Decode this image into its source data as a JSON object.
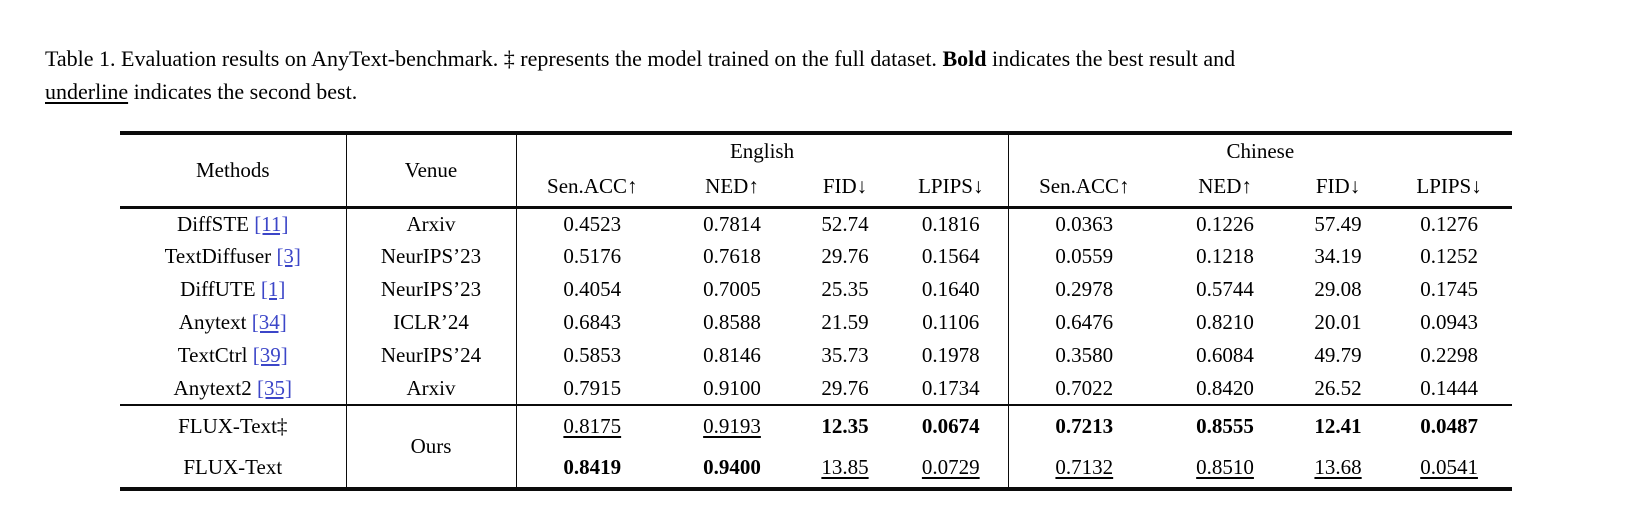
{
  "caption": {
    "segments": [
      {
        "style": "normal",
        "text": "Table 1. Evaluation results on AnyText-benchmark. ‡ represents the model trained on the full dataset. "
      },
      {
        "style": "bold",
        "text": "Bold"
      },
      {
        "style": "normal",
        "text": " indicates the best result and"
      },
      {
        "style": "break",
        "text": ""
      },
      {
        "style": "underline",
        "text": "underline"
      },
      {
        "style": "normal",
        "text": " indicates the second best."
      }
    ]
  },
  "table": {
    "link_color": "#3c46c8",
    "header": {
      "methods": "Methods",
      "venue": "Venue",
      "group_english": "English",
      "group_chinese": "Chinese",
      "metrics": [
        "Sen.ACC↑",
        "NED↑",
        "FID↓",
        "LPIPS↓"
      ]
    },
    "rows": [
      {
        "method": "DiffSTE",
        "cite": "[11]",
        "venue": "Arxiv",
        "english": [
          "0.4523",
          "0.7814",
          "52.74",
          "0.1816"
        ],
        "chinese": [
          "0.0363",
          "0.1226",
          "57.49",
          "0.1276"
        ]
      },
      {
        "method": "TextDiffuser",
        "cite": "[3]",
        "venue": "NeurIPS’23",
        "english": [
          "0.5176",
          "0.7618",
          "29.76",
          "0.1564"
        ],
        "chinese": [
          "0.0559",
          "0.1218",
          "34.19",
          "0.1252"
        ]
      },
      {
        "method": "DiffUTE",
        "cite": "[1]",
        "venue": "NeurIPS’23",
        "english": [
          "0.4054",
          "0.7005",
          "25.35",
          "0.1640"
        ],
        "chinese": [
          "0.2978",
          "0.5744",
          "29.08",
          "0.1745"
        ]
      },
      {
        "method": "Anytext",
        "cite": "[34]",
        "venue": "ICLR’24",
        "english": [
          "0.6843",
          "0.8588",
          "21.59",
          "0.1106"
        ],
        "chinese": [
          "0.6476",
          "0.8210",
          "20.01",
          "0.0943"
        ]
      },
      {
        "method": "TextCtrl",
        "cite": "[39]",
        "venue": "NeurIPS’24",
        "english": [
          "0.5853",
          "0.8146",
          "35.73",
          "0.1978"
        ],
        "chinese": [
          "0.3580",
          "0.6084",
          "49.79",
          "0.2298"
        ]
      },
      {
        "method": "Anytext2",
        "cite": "[35]",
        "venue": "Arxiv",
        "english": [
          "0.7915",
          "0.9100",
          "29.76",
          "0.1734"
        ],
        "chinese": [
          "0.7022",
          "0.8420",
          "26.52",
          "0.1444"
        ]
      }
    ],
    "ours_rows": [
      {
        "method": "FLUX-Text‡",
        "venue": "Ours",
        "english": [
          {
            "text": "0.8175",
            "style": "underline"
          },
          {
            "text": "0.9193",
            "style": "underline"
          },
          {
            "text": "12.35",
            "style": "bold"
          },
          {
            "text": "0.0674",
            "style": "bold"
          }
        ],
        "chinese": [
          {
            "text": "0.7213",
            "style": "bold"
          },
          {
            "text": "0.8555",
            "style": "bold"
          },
          {
            "text": "12.41",
            "style": "bold"
          },
          {
            "text": "0.0487",
            "style": "bold"
          }
        ]
      },
      {
        "method": "FLUX-Text",
        "english": [
          {
            "text": "0.8419",
            "style": "bold"
          },
          {
            "text": "0.9400",
            "style": "bold"
          },
          {
            "text": "13.85",
            "style": "underline"
          },
          {
            "text": "0.0729",
            "style": "underline"
          }
        ],
        "chinese": [
          {
            "text": "0.7132",
            "style": "underline"
          },
          {
            "text": "0.8510",
            "style": "underline"
          },
          {
            "text": "13.68",
            "style": "underline"
          },
          {
            "text": "0.0541",
            "style": "underline"
          }
        ]
      }
    ]
  }
}
